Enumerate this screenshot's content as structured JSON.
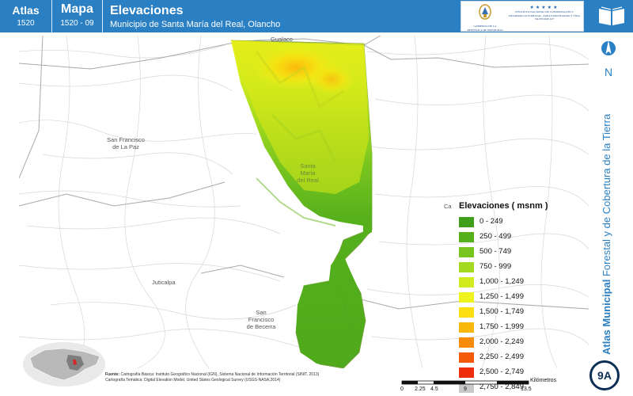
{
  "header": {
    "atlas_label": "Atlas",
    "atlas_code": "1520",
    "mapa_label": "Mapa",
    "mapa_code": "1520 - 09",
    "title": "Elevaciones",
    "subtitle": "Municipio de Santa María del Real, Olancho",
    "logo_left_text": "GOBIERNO DE LA REPÚBLICA DE HONDURAS",
    "logo_right_text": "INSTITUTO NACIONAL DE CONSERVACIÓN Y DESARROLLO FORESTAL, ÁREAS PROTEGIDAS Y VIDA SILVESTRE ICF"
  },
  "side": {
    "north_label": "N",
    "title_bold": "Atlas Municipal",
    "title_rest": "Forestal y de Cobertura de la Tierra",
    "badge": "9A"
  },
  "places": {
    "gualaco": "Gualaco",
    "san_francisco_paz_1": "San Francisco",
    "san_francisco_paz_2": "de La Paz",
    "santa_maria_1": "Santa",
    "santa_maria_2": "María",
    "santa_maria_3": "del Real",
    "juticalpa": "Juticalpa",
    "san_francisco_becerra_1": "San",
    "san_francisco_becerra_2": "Francisco",
    "san_francisco_becerra_3": "de Becerra",
    "partial_label": "Ca"
  },
  "legend": {
    "title": "Elevaciones ( msnm )",
    "items": [
      {
        "label": "0 - 249",
        "color": "#3f9e1a"
      },
      {
        "label": "250 - 499",
        "color": "#55b01c"
      },
      {
        "label": "500 - 749",
        "color": "#79c51f"
      },
      {
        "label": "750 - 999",
        "color": "#a3d91f"
      },
      {
        "label": "1,000 - 1,249",
        "color": "#d1ec1e"
      },
      {
        "label": "1,250 - 1,499",
        "color": "#eef21d"
      },
      {
        "label": "1,500 - 1,749",
        "color": "#fbdf10"
      },
      {
        "label": "1,750 - 1,999",
        "color": "#fbb80c"
      },
      {
        "label": "2,000 - 2,249",
        "color": "#f98b0b"
      },
      {
        "label": "2,250 - 2,499",
        "color": "#f55a0a"
      },
      {
        "label": "2,500 - 2,749",
        "color": "#ee2e0b"
      },
      {
        "label": "2,750 - 2,849",
        "color": "#c8c8c8"
      }
    ]
  },
  "credits": {
    "fuente_label": "Fuente:",
    "line1": "Cartografía Básica: Instituto Geográfico Nacional (IGN), Sistema Nacional de Información Territorial (SINIT, 2013)",
    "line2": "Cartografía Temática: Digital Elevation Model, United States Geological Survey (USGS-NASA,2014)"
  },
  "scale": {
    "unit": "Kilómetros",
    "ticks": [
      "0",
      "2.25",
      "4.5",
      "9",
      "13.5"
    ]
  }
}
